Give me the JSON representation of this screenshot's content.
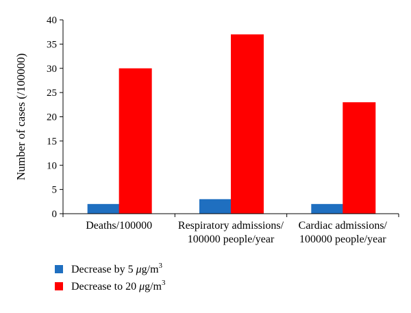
{
  "chart_data": {
    "type": "bar",
    "title": "",
    "xlabel": "",
    "ylabel": "Number of cases (/100000)",
    "ylim": [
      0,
      40
    ],
    "yticks": [
      0,
      5,
      10,
      15,
      20,
      25,
      30,
      35,
      40
    ],
    "grid": false,
    "legend_position": "bottom-left",
    "categories": [
      [
        "Deaths/100000"
      ],
      [
        "Respiratory admissions/",
        "100000 people/year"
      ],
      [
        "Cardiac admissions/",
        "100000 people/year"
      ]
    ],
    "series": [
      {
        "name": "Decrease by 5 μg/m³",
        "legend_prefix": "Decrease by 5 ",
        "legend_mu": "μ",
        "legend_unit": "g/m",
        "legend_sup": "3",
        "color": "#1f6fc0",
        "values": [
          2,
          3,
          2
        ]
      },
      {
        "name": "Decrease to 20 μg/m³",
        "legend_prefix": "Decrease to 20 ",
        "legend_mu": "μ",
        "legend_unit": "g/m",
        "legend_sup": "3",
        "color": "#ff0000",
        "values": [
          30,
          37,
          23
        ]
      }
    ]
  }
}
